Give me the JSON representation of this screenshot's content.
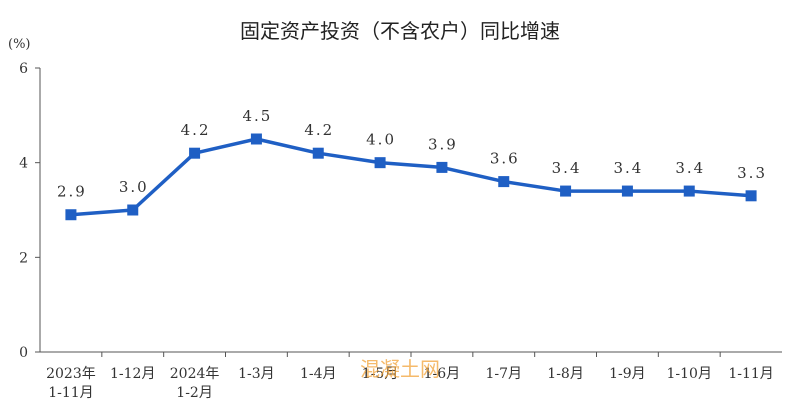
{
  "chart_data": {
    "type": "line",
    "title": "固定资产投资（不含农户）同比增速",
    "unit_label": "(%)",
    "categories": [
      [
        "2023年",
        "1-11月"
      ],
      [
        "1-12月"
      ],
      [
        "2024年",
        "1-2月"
      ],
      [
        "1-3月"
      ],
      [
        "1-4月"
      ],
      [
        "1-5月"
      ],
      [
        "1-6月"
      ],
      [
        "1-7月"
      ],
      [
        "1-8月"
      ],
      [
        "1-9月"
      ],
      [
        "1-10月"
      ],
      [
        "1-11月"
      ]
    ],
    "values": [
      2.9,
      3.0,
      4.2,
      4.5,
      4.2,
      4.0,
      3.9,
      3.6,
      3.4,
      3.4,
      3.4,
      3.3
    ],
    "value_labels": [
      "2.9",
      "3.0",
      "4.2",
      "4.5",
      "4.2",
      "4.0",
      "3.9",
      "3.6",
      "3.4",
      "3.4",
      "3.4",
      "3.3"
    ],
    "ylim": [
      0,
      6
    ],
    "yticks": [
      0,
      2,
      4,
      6
    ],
    "grid": false,
    "line_color": "#1f5fc4"
  },
  "watermark": "混凝土网"
}
